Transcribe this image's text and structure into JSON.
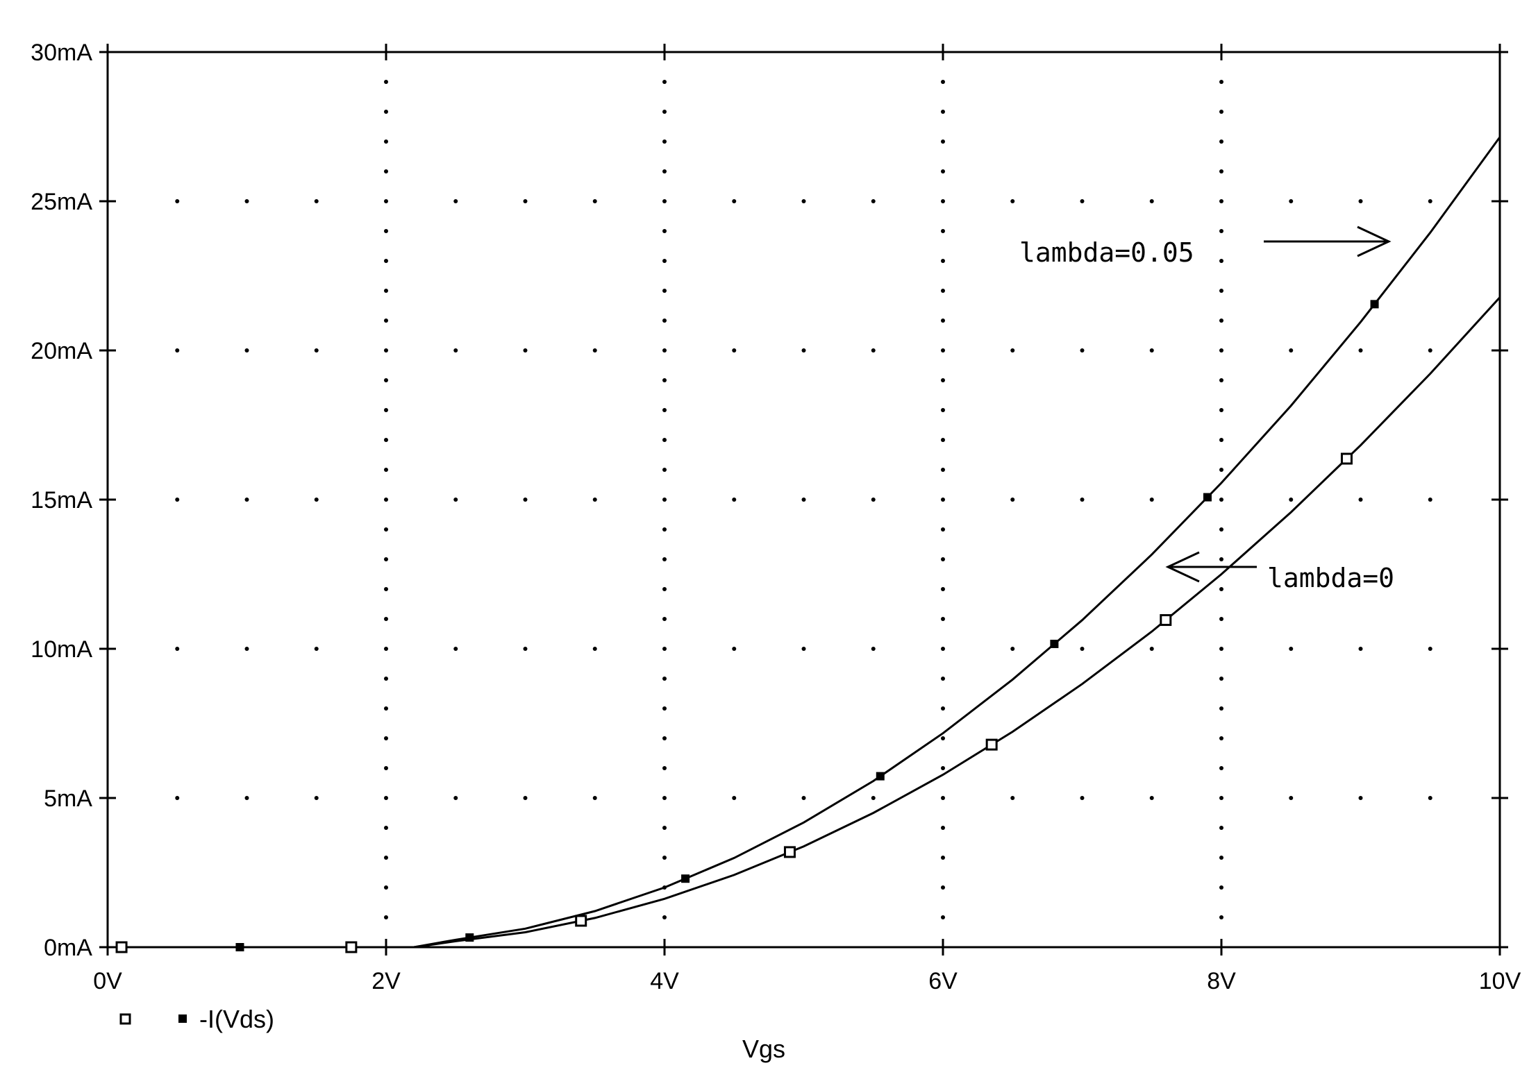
{
  "chart_data": {
    "type": "line",
    "xlabel": "Vgs",
    "ylabel": "",
    "title": "",
    "xlim": [
      0,
      10
    ],
    "ylim": [
      0,
      30
    ],
    "x_ticks": [
      0,
      2,
      4,
      6,
      8,
      10
    ],
    "x_tick_labels": [
      "0V",
      "2V",
      "4V",
      "6V",
      "8V",
      "10V"
    ],
    "y_ticks": [
      0,
      5,
      10,
      15,
      20,
      25,
      30
    ],
    "y_tick_labels": [
      "0mA",
      "5mA",
      "10mA",
      "15mA",
      "20mA",
      "25mA",
      "30mA"
    ],
    "grid": "dotted",
    "legend_position": "bottom-left",
    "legend": [
      {
        "marker": "open-square",
        "label": ""
      },
      {
        "marker": "filled-square",
        "label": "-I(Vds)"
      }
    ],
    "x": [
      0,
      0.5,
      1,
      1.5,
      2,
      2.2,
      2.5,
      3,
      3.5,
      4,
      4.5,
      5,
      5.5,
      6,
      6.5,
      7,
      7.5,
      8,
      8.5,
      9,
      9.5,
      10
    ],
    "series": [
      {
        "marker": "filled-square",
        "values": [
          0,
          0,
          0,
          0,
          0,
          0,
          0.25,
          0.62,
          1.21,
          2.0,
          2.99,
          4.18,
          5.57,
          7.17,
          8.97,
          10.96,
          13.16,
          15.56,
          18.15,
          20.95,
          23.95,
          27.15
        ]
      },
      {
        "marker": "open-square",
        "values": [
          0,
          0,
          0,
          0,
          0,
          0,
          0.2,
          0.5,
          0.98,
          1.62,
          2.42,
          3.38,
          4.5,
          5.78,
          7.22,
          8.82,
          10.58,
          12.5,
          14.58,
          16.82,
          19.22,
          21.78
        ]
      }
    ],
    "annotations": [
      {
        "text": "lambda=0.05"
      },
      {
        "text": "lambda=0"
      }
    ]
  }
}
